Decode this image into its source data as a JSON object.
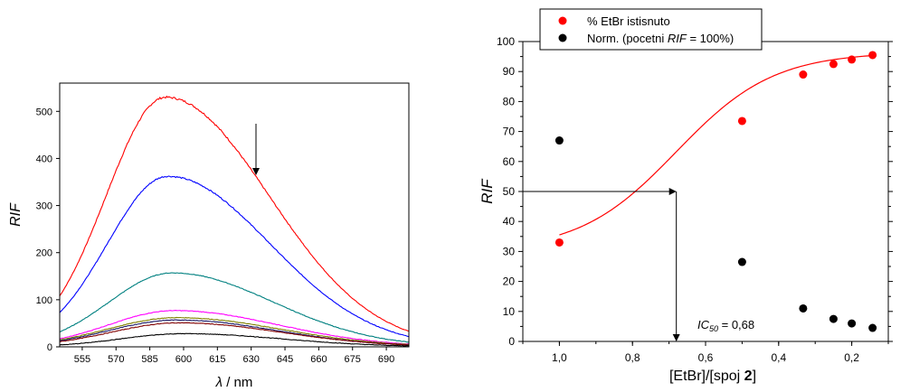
{
  "chart_data": [
    {
      "type": "line",
      "xlabel_symbol": "λ",
      "xlabel_unit": "/ nm",
      "ylabel": "RIF",
      "xlim": [
        545,
        700
      ],
      "ylim": [
        0,
        560
      ],
      "xticks": [
        "555",
        "570",
        "585",
        "600",
        "615",
        "630",
        "645",
        "660",
        "675",
        "690"
      ],
      "yticks": [
        "0",
        "100",
        "200",
        "300",
        "400",
        "500"
      ],
      "annotation": "downward arrow at 633 nm",
      "series": [
        {
          "color": "#ff0000",
          "peak_x": 592,
          "peak": 530,
          "at_545": 108,
          "at_700": 33
        },
        {
          "color": "#0000ff",
          "peak_x": 593,
          "peak": 362,
          "at_545": 73,
          "at_700": 22
        },
        {
          "color": "#008080",
          "peak_x": 595,
          "peak": 157,
          "at_545": 32,
          "at_700": 10
        },
        {
          "color": "#ff00ff",
          "peak_x": 596,
          "peak": 77,
          "at_545": 17,
          "at_700": 6
        },
        {
          "color": "#808000",
          "peak_x": 597,
          "peak": 62,
          "at_545": 15,
          "at_700": 5
        },
        {
          "color": "#1a1a66",
          "peak_x": 597,
          "peak": 57,
          "at_545": 13,
          "at_700": 4
        },
        {
          "color": "#800000",
          "peak_x": 598,
          "peak": 51,
          "at_545": 11,
          "at_700": 4
        },
        {
          "color": "#000000",
          "peak_x": 600,
          "peak": 28,
          "at_545": 4,
          "at_700": 2
        }
      ]
    },
    {
      "type": "scatter",
      "xlabel": "[EtBr]/[spoj ",
      "xlabel_bold": "2",
      "xlabel_end": "]",
      "ylabel": "RIF",
      "xlim": [
        1.1,
        0.1
      ],
      "ylim": [
        0,
        100
      ],
      "xticks": [
        "1,0",
        "0,8",
        "0,6",
        "0,4",
        "0,2"
      ],
      "yticks": [
        "0",
        "10",
        "20",
        "30",
        "40",
        "50",
        "60",
        "70",
        "80",
        "90",
        "100"
      ],
      "legend": {
        "position": "top-left",
        "red_label": "% EtBr istisnuto",
        "black_label_prefix": "Norm. (pocetni ",
        "black_label_italic": "RIF",
        "black_label_suffix": " = 100%)"
      },
      "series": [
        {
          "color": "#ff0000",
          "x": [
            1.0,
            0.5,
            0.333,
            0.25,
            0.2,
            0.143
          ],
          "y": [
            33,
            73.5,
            89,
            92.5,
            94,
            95.5
          ]
        },
        {
          "color": "#000000",
          "x": [
            1.0,
            0.5,
            0.333,
            0.25,
            0.2,
            0.143
          ],
          "y": [
            67,
            26.5,
            11,
            7.5,
            6,
            4.5
          ]
        }
      ],
      "fit": {
        "color": "#ff0000",
        "bottom": 30,
        "top": 96.5,
        "x50": 0.68,
        "slope": 7.5
      },
      "marker": {
        "x": 0.68,
        "y": 50
      },
      "annotation_italic": "IC",
      "annotation_sub": "50",
      "annotation_value": " = 0,68"
    }
  ]
}
